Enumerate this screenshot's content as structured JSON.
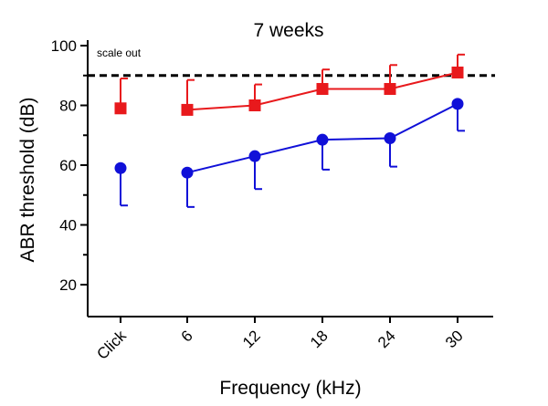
{
  "chart_data": {
    "type": "line",
    "title": "7 weeks",
    "xlabel": "Frequency (kHz)",
    "ylabel": "ABR threshold (dB)",
    "categories": [
      "Click",
      "6",
      "12",
      "18",
      "24",
      "30"
    ],
    "ylim": [
      10,
      100
    ],
    "yticks": [
      20,
      40,
      60,
      80,
      100
    ],
    "grid": false,
    "reference_line": {
      "value": 90,
      "style": "dashed",
      "color": "#000000"
    },
    "annotations": [
      {
        "text": "scale out"
      }
    ],
    "series": [
      {
        "name": "red-square-series",
        "marker": "square",
        "color": "#e8191c",
        "connected_from_index": 1,
        "values": [
          79,
          78.5,
          80,
          85.5,
          85.5,
          91
        ],
        "error_upper": [
          89,
          88.5,
          87,
          92,
          93.5,
          97
        ]
      },
      {
        "name": "blue-circle-series",
        "marker": "circle",
        "color": "#1010d8",
        "connected_from_index": 1,
        "values": [
          59,
          57.5,
          63,
          68.5,
          69,
          80.5
        ],
        "error_lower": [
          46.5,
          46,
          52,
          58.5,
          59.5,
          71.5
        ]
      }
    ]
  }
}
